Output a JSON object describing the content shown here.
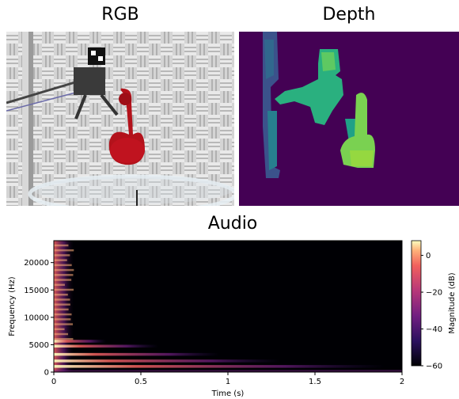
{
  "panels": {
    "rgb_title": "RGB",
    "depth_title": "Depth",
    "audio_title": "Audio"
  },
  "colors": {
    "spectrogram_bg": "#000004",
    "depth_bg": "#440154",
    "depth_mid": "#2a9d8f",
    "depth_near": "#7ad151"
  },
  "chart_data": {
    "type": "heatmap",
    "title": "Audio",
    "xlabel": "Time (s)",
    "ylabel": "Frequency (Hz)",
    "colorbar_label": "Magnitude (dB)",
    "xlim": [
      0,
      2
    ],
    "ylim": [
      0,
      24000
    ],
    "clim": [
      -60,
      8
    ],
    "x_ticks": [
      0,
      0.5,
      1,
      1.5,
      2
    ],
    "x_tick_labels": [
      "0",
      "0.5",
      "1",
      "1.5",
      "2"
    ],
    "y_ticks": [
      0,
      5000,
      10000,
      15000,
      20000
    ],
    "y_tick_labels": [
      "0",
      "5000",
      "10000",
      "15000",
      "20000"
    ],
    "colorbar_ticks": [
      0,
      -20,
      -40,
      -60
    ],
    "colorbar_tick_labels": [
      "0",
      "−20",
      "−40",
      "−60"
    ],
    "colormap": "magma",
    "harmonics": [
      {
        "freq": 1000,
        "decay_s": 1.9,
        "level_db": -8
      },
      {
        "freq": 2000,
        "decay_s": 1.3,
        "level_db": -12
      },
      {
        "freq": 3200,
        "decay_s": 0.95,
        "level_db": -16
      },
      {
        "freq": 4700,
        "decay_s": 0.6,
        "level_db": -20
      },
      {
        "freq": 5600,
        "decay_s": 0.3,
        "level_db": -24
      }
    ]
  }
}
